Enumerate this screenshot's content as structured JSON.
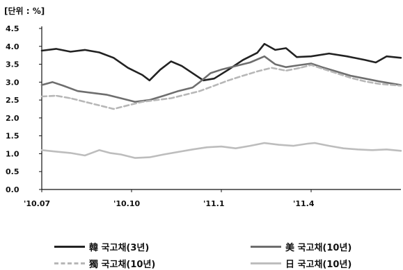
{
  "chart_data": {
    "type": "line",
    "unit_label": "[단위 : %]",
    "ylim": [
      0.0,
      4.5
    ],
    "y_ticks": [
      "0.0",
      "0.5",
      "1.0",
      "1.5",
      "2.0",
      "2.5",
      "3.0",
      "3.5",
      "4.0",
      "4.5"
    ],
    "x_tick_labels": [
      "'10.07",
      "'10.10",
      "'11.1",
      "'11.4"
    ],
    "x_tick_positions": [
      0,
      0.25,
      0.5,
      0.75
    ],
    "grid": false,
    "legend_position": "bottom",
    "series": [
      {
        "name": "韓 국고채(3년)",
        "color": "#222222",
        "dash": "solid",
        "points": [
          [
            0.0,
            3.88
          ],
          [
            0.04,
            3.93
          ],
          [
            0.08,
            3.85
          ],
          [
            0.12,
            3.9
          ],
          [
            0.16,
            3.83
          ],
          [
            0.2,
            3.68
          ],
          [
            0.24,
            3.4
          ],
          [
            0.28,
            3.2
          ],
          [
            0.3,
            3.05
          ],
          [
            0.33,
            3.35
          ],
          [
            0.36,
            3.58
          ],
          [
            0.39,
            3.45
          ],
          [
            0.42,
            3.25
          ],
          [
            0.45,
            3.05
          ],
          [
            0.48,
            3.1
          ],
          [
            0.52,
            3.35
          ],
          [
            0.56,
            3.62
          ],
          [
            0.6,
            3.82
          ],
          [
            0.62,
            4.07
          ],
          [
            0.65,
            3.9
          ],
          [
            0.68,
            3.95
          ],
          [
            0.71,
            3.7
          ],
          [
            0.75,
            3.72
          ],
          [
            0.8,
            3.8
          ],
          [
            0.85,
            3.72
          ],
          [
            0.9,
            3.62
          ],
          [
            0.93,
            3.55
          ],
          [
            0.96,
            3.72
          ],
          [
            1.0,
            3.68
          ]
        ]
      },
      {
        "name": "美 국고채(10년)",
        "color": "#6e6e6e",
        "dash": "solid",
        "points": [
          [
            0.0,
            2.92
          ],
          [
            0.03,
            3.0
          ],
          [
            0.06,
            2.9
          ],
          [
            0.1,
            2.75
          ],
          [
            0.14,
            2.7
          ],
          [
            0.18,
            2.65
          ],
          [
            0.22,
            2.55
          ],
          [
            0.26,
            2.45
          ],
          [
            0.3,
            2.5
          ],
          [
            0.34,
            2.62
          ],
          [
            0.38,
            2.75
          ],
          [
            0.42,
            2.85
          ],
          [
            0.44,
            3.0
          ],
          [
            0.47,
            3.25
          ],
          [
            0.5,
            3.35
          ],
          [
            0.54,
            3.45
          ],
          [
            0.58,
            3.55
          ],
          [
            0.62,
            3.72
          ],
          [
            0.65,
            3.5
          ],
          [
            0.68,
            3.42
          ],
          [
            0.72,
            3.48
          ],
          [
            0.75,
            3.52
          ],
          [
            0.78,
            3.42
          ],
          [
            0.82,
            3.3
          ],
          [
            0.86,
            3.18
          ],
          [
            0.9,
            3.1
          ],
          [
            0.94,
            3.02
          ],
          [
            1.0,
            2.92
          ]
        ]
      },
      {
        "name": "獨 국고채(10년)",
        "color": "#b7b7b7",
        "dash": "dashed",
        "points": [
          [
            0.0,
            2.6
          ],
          [
            0.04,
            2.62
          ],
          [
            0.08,
            2.55
          ],
          [
            0.12,
            2.45
          ],
          [
            0.16,
            2.35
          ],
          [
            0.2,
            2.25
          ],
          [
            0.24,
            2.35
          ],
          [
            0.28,
            2.45
          ],
          [
            0.32,
            2.5
          ],
          [
            0.36,
            2.55
          ],
          [
            0.4,
            2.65
          ],
          [
            0.44,
            2.75
          ],
          [
            0.48,
            2.9
          ],
          [
            0.52,
            3.05
          ],
          [
            0.56,
            3.18
          ],
          [
            0.6,
            3.3
          ],
          [
            0.64,
            3.4
          ],
          [
            0.68,
            3.32
          ],
          [
            0.72,
            3.4
          ],
          [
            0.75,
            3.48
          ],
          [
            0.78,
            3.38
          ],
          [
            0.82,
            3.25
          ],
          [
            0.86,
            3.12
          ],
          [
            0.9,
            3.02
          ],
          [
            0.94,
            2.95
          ],
          [
            1.0,
            2.9
          ]
        ]
      },
      {
        "name": "日 국고채(10년)",
        "color": "#bdbdbd",
        "dash": "solid",
        "points": [
          [
            0.0,
            1.1
          ],
          [
            0.04,
            1.06
          ],
          [
            0.08,
            1.02
          ],
          [
            0.12,
            0.95
          ],
          [
            0.16,
            1.1
          ],
          [
            0.19,
            1.02
          ],
          [
            0.22,
            0.98
          ],
          [
            0.26,
            0.88
          ],
          [
            0.3,
            0.9
          ],
          [
            0.34,
            0.98
          ],
          [
            0.38,
            1.05
          ],
          [
            0.42,
            1.12
          ],
          [
            0.46,
            1.18
          ],
          [
            0.5,
            1.2
          ],
          [
            0.54,
            1.15
          ],
          [
            0.58,
            1.22
          ],
          [
            0.62,
            1.3
          ],
          [
            0.66,
            1.25
          ],
          [
            0.7,
            1.22
          ],
          [
            0.74,
            1.28
          ],
          [
            0.76,
            1.3
          ],
          [
            0.8,
            1.22
          ],
          [
            0.84,
            1.15
          ],
          [
            0.88,
            1.12
          ],
          [
            0.92,
            1.1
          ],
          [
            0.96,
            1.12
          ],
          [
            1.0,
            1.08
          ]
        ]
      }
    ]
  },
  "legend": [
    {
      "label": "韓 국고채(3년)",
      "color": "#222222",
      "dash": "solid"
    },
    {
      "label": "美 국고채(10년)",
      "color": "#6e6e6e",
      "dash": "solid"
    },
    {
      "label": "獨 국고채(10년)",
      "color": "#b7b7b7",
      "dash": "dashed"
    },
    {
      "label": "日 국고채(10년)",
      "color": "#bdbdbd",
      "dash": "solid"
    }
  ]
}
